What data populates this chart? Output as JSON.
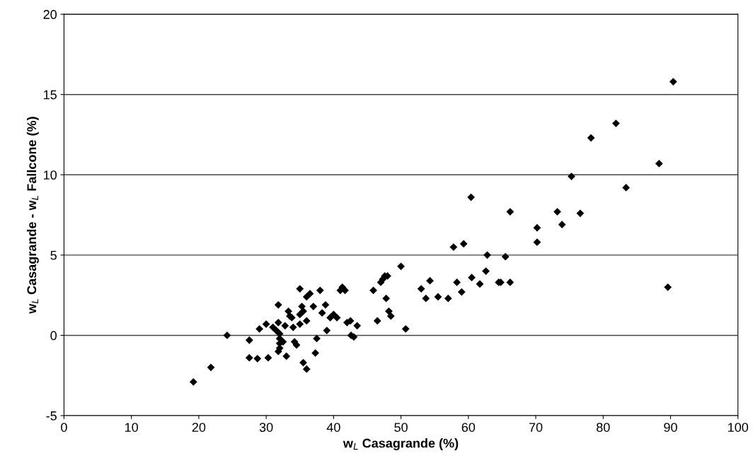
{
  "chart_data": {
    "type": "scatter",
    "xlabel": "w$_{L}$ Casagrande (%)",
    "ylabel": "w$_{L}$ Casagrande - w$_{L}$ Fallcone (%)",
    "xlim": [
      0,
      100
    ],
    "xticks": [
      0,
      10,
      20,
      30,
      40,
      50,
      60,
      70,
      80,
      90,
      100
    ],
    "ylim": [
      -5,
      20
    ],
    "yticks": [
      -5,
      0,
      5,
      10,
      15,
      20
    ],
    "grid": "y",
    "marker": "diamond",
    "series": [
      {
        "color": "#000000",
        "x": [
          19.2,
          21.8,
          24.2,
          27.5,
          27.5,
          28.7,
          29,
          30,
          30.3,
          31,
          31.5,
          31.8,
          31.8,
          32,
          32,
          32,
          32,
          31.8,
          32.5,
          32.8,
          33,
          33.3,
          33.5,
          33.8,
          34,
          34.2,
          34.5,
          35,
          35,
          35,
          35.3,
          35.5,
          35.5,
          36,
          36,
          36,
          36.5,
          37,
          37.3,
          37.5,
          38,
          38.3,
          38.8,
          39,
          39.5,
          40,
          40.5,
          41,
          41.3,
          41.7,
          42,
          42.5,
          42.6,
          43,
          43.5,
          45.9,
          46.5,
          47,
          47.3,
          47.6,
          48,
          47.8,
          48.2,
          48.5,
          50,
          50.7,
          53,
          53.7,
          54.3,
          55.5,
          57,
          57.8,
          58.3,
          59,
          59.3,
          60.4,
          60.5,
          61.7,
          62.6,
          62.8,
          64.5,
          64.8,
          65.5,
          66.2,
          66.2,
          70.2,
          70.2,
          73.2,
          73.9,
          75.3,
          76.6,
          78.2,
          81.9,
          83.4,
          88.3,
          89.6,
          90.4
        ],
        "values": [
          -2.9,
          -2,
          0,
          -0.3,
          -1.4,
          -1.45,
          0.4,
          0.7,
          -1.4,
          0.5,
          0.3,
          1.9,
          0.8,
          0.1,
          -0.2,
          -0.5,
          -0.8,
          -1,
          -0.4,
          0.6,
          -1.3,
          1.5,
          1.2,
          1.1,
          0.5,
          -0.4,
          -0.6,
          2.9,
          1.3,
          0.7,
          1.8,
          1.5,
          -1.7,
          2.4,
          -2.1,
          0.9,
          2.6,
          1.8,
          -1.1,
          -0.2,
          2.8,
          1.4,
          1.9,
          0.3,
          1.1,
          1.3,
          1.1,
          2.8,
          3,
          2.8,
          0.8,
          0.9,
          0,
          -0.1,
          0.6,
          2.8,
          0.9,
          3.3,
          3.5,
          3.7,
          3.7,
          2.3,
          1.5,
          1.2,
          4.3,
          0.4,
          2.9,
          2.3,
          3.4,
          2.4,
          2.3,
          5.5,
          3.3,
          2.7,
          5.7,
          8.6,
          3.6,
          3.2,
          4,
          5,
          3.3,
          3.3,
          4.9,
          3.3,
          7.7,
          5.8,
          6.7,
          7.7,
          6.9,
          9.9,
          7.6,
          12.3,
          13.2,
          9.2,
          10.7,
          3,
          15.8
        ]
      }
    ]
  }
}
